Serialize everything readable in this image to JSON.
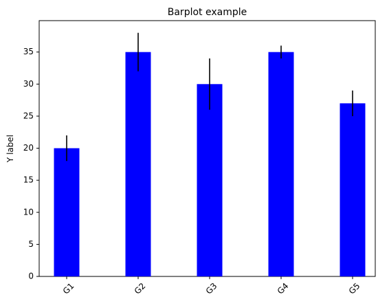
{
  "chart_data": {
    "type": "bar",
    "title": "Barplot example",
    "xlabel": "",
    "ylabel": "Y label",
    "categories": [
      "G1",
      "G2",
      "G3",
      "G4",
      "G5"
    ],
    "values": [
      20,
      35,
      30,
      35,
      27
    ],
    "errors": [
      2,
      3,
      4,
      1,
      2
    ],
    "ylim": [
      0,
      39.9
    ],
    "yticks": [
      0,
      5,
      10,
      15,
      20,
      25,
      30,
      35
    ],
    "xtick_rotation_deg": 45,
    "bar_color": "#0000ff",
    "error_color": "#000000",
    "grid": false,
    "legend": "none"
  }
}
